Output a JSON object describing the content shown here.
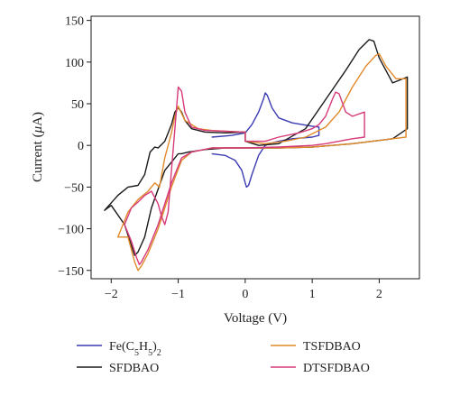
{
  "chart_data": {
    "type": "line",
    "xlabel": "Voltage (V)",
    "ylabel": "Current (μA)",
    "xlim": [
      -2.3,
      2.6
    ],
    "ylim": [
      -160,
      155
    ],
    "x_ticks": [
      -2,
      -1,
      0,
      1,
      2
    ],
    "x_tick_labels": [
      "−2",
      "−1",
      "0",
      "1",
      "2"
    ],
    "y_ticks": [
      -150,
      -100,
      -50,
      0,
      50,
      100,
      150
    ],
    "y_tick_labels": [
      "−150",
      "−100",
      "−50",
      "0",
      "50",
      "100",
      "150"
    ],
    "grid": false,
    "legend_position": "bottom",
    "series": [
      {
        "name": "Fe(C5H5)2",
        "color": "#3b3bb3",
        "x": [
          -0.5,
          -0.3,
          -0.15,
          -0.05,
          0.0,
          0.02,
          0.05,
          0.1,
          0.2,
          0.28,
          0.3,
          0.4,
          0.5,
          0.7,
          1.0,
          1.1,
          1.1,
          1.0,
          0.7,
          0.5,
          0.4,
          0.33,
          0.3,
          0.27,
          0.2,
          0.1,
          0.0,
          -0.2,
          -0.5
        ],
        "y": [
          -10,
          -12,
          -18,
          -30,
          -45,
          -50,
          -48,
          -35,
          -12,
          -2,
          0,
          3,
          5,
          8,
          10,
          12,
          22,
          23,
          27,
          33,
          45,
          60,
          63,
          55,
          40,
          25,
          15,
          12,
          10
        ]
      },
      {
        "name": "SFDBAO",
        "color": "#1a1a1a",
        "x": [
          -1.0,
          -1.2,
          -1.4,
          -1.5,
          -1.6,
          -1.65,
          -1.8,
          -2.0,
          -2.1,
          -1.9,
          -1.75,
          -1.6,
          -1.5,
          -1.42,
          -1.35,
          -1.3,
          -1.2,
          -1.1,
          -1.05,
          -1.0,
          -0.95,
          -0.9,
          -0.8,
          -0.6,
          -0.3,
          0.0,
          0.0,
          0.2,
          0.5,
          0.9,
          1.2,
          1.5,
          1.7,
          1.85,
          1.92,
          2.0,
          2.2,
          2.42,
          2.42,
          2.2,
          1.9,
          1.6,
          1.3,
          1.0,
          0.5,
          0.0,
          -0.3,
          -0.6,
          -0.85,
          -0.95,
          -1.0
        ],
        "y": [
          -10,
          -30,
          -75,
          -110,
          -128,
          -132,
          -95,
          -72,
          -78,
          -60,
          -50,
          -48,
          -35,
          -8,
          -2,
          -3,
          5,
          25,
          40,
          45,
          40,
          30,
          20,
          16,
          15,
          16,
          5,
          0,
          2,
          20,
          55,
          90,
          115,
          127,
          125,
          105,
          75,
          82,
          20,
          8,
          5,
          2,
          0,
          -2,
          -3,
          -3,
          -3,
          -5,
          -8,
          -10,
          -10
        ]
      },
      {
        "name": "TSFDBAO",
        "color": "#e08a2c",
        "x": [
          -0.95,
          -1.1,
          -1.3,
          -1.45,
          -1.55,
          -1.6,
          -1.65,
          -1.75,
          -1.9,
          -1.75,
          -1.6,
          -1.45,
          -1.35,
          -1.28,
          -1.2,
          -1.1,
          -1.05,
          -1.0,
          -0.9,
          -0.7,
          -0.5,
          -0.3,
          0.0,
          0.0,
          0.3,
          0.6,
          0.9,
          1.2,
          1.4,
          1.6,
          1.8,
          1.95,
          2.0,
          2.1,
          2.25,
          2.4,
          2.4,
          2.2,
          1.9,
          1.6,
          1.3,
          1.0,
          0.5,
          0.0,
          -0.5,
          -0.8,
          -0.95
        ],
        "y": [
          -18,
          -50,
          -100,
          -130,
          -145,
          -150,
          -140,
          -110,
          -110,
          -80,
          -65,
          -55,
          -45,
          -50,
          -15,
          15,
          35,
          47,
          30,
          20,
          18,
          17,
          16,
          5,
          2,
          5,
          10,
          22,
          40,
          70,
          95,
          108,
          110,
          95,
          80,
          80,
          10,
          8,
          5,
          2,
          0,
          -2,
          -3,
          -3,
          -3,
          -8,
          -18
        ]
      },
      {
        "name": "DTSFDBAO",
        "color": "#d63a7a",
        "x": [
          -0.95,
          -1.1,
          -1.3,
          -1.45,
          -1.55,
          -1.58,
          -1.62,
          -1.7,
          -1.8,
          -1.7,
          -1.6,
          -1.5,
          -1.4,
          -1.3,
          -1.25,
          -1.2,
          -1.15,
          -1.1,
          -1.05,
          -1.0,
          -0.95,
          -0.9,
          -0.8,
          -0.6,
          -0.3,
          0.0,
          0.0,
          0.3,
          0.5,
          0.8,
          1.0,
          1.1,
          1.2,
          1.3,
          1.35,
          1.4,
          1.5,
          1.6,
          1.78,
          1.78,
          1.6,
          1.4,
          1.2,
          1.0,
          0.5,
          0.0,
          -0.5,
          -0.8,
          -0.95
        ],
        "y": [
          -15,
          -45,
          -95,
          -125,
          -140,
          -143,
          -135,
          -115,
          -95,
          -75,
          -68,
          -60,
          -55,
          -70,
          -85,
          -95,
          -80,
          -30,
          20,
          70,
          65,
          40,
          22,
          18,
          17,
          16,
          5,
          5,
          10,
          15,
          20,
          25,
          35,
          55,
          64,
          62,
          40,
          35,
          40,
          10,
          8,
          5,
          2,
          0,
          -2,
          -3,
          -3,
          -8,
          -15
        ]
      }
    ],
    "legend": [
      "Fe(C5H5)2",
      "TSFDBAO",
      "SFDBAO",
      "DTSFDBAO"
    ]
  }
}
